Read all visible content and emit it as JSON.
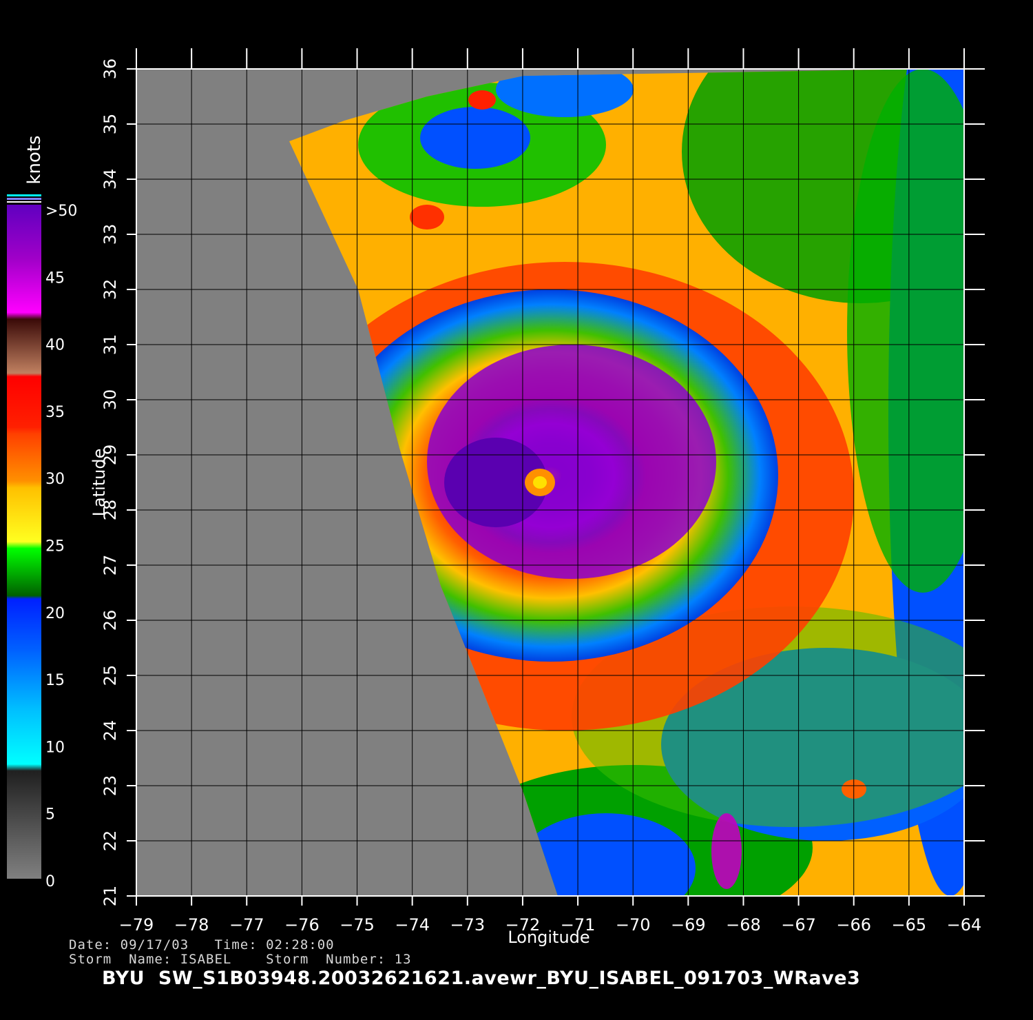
{
  "map": {
    "x_axis_label": "Longitude",
    "y_axis_label": "Latitude",
    "lon_ticks": [
      "−79",
      "−78",
      "−77",
      "−76",
      "−75",
      "−74",
      "−73",
      "−72",
      "−71",
      "−70",
      "−69",
      "−68",
      "−67",
      "−66",
      "−65",
      "−64"
    ],
    "lat_ticks": [
      "21",
      "22",
      "23",
      "24",
      "25",
      "26",
      "27",
      "28",
      "29",
      "30",
      "31",
      "32",
      "33",
      "34",
      "35",
      "36"
    ],
    "lon_range": [
      -79,
      -64
    ],
    "lat_range": [
      21,
      36
    ],
    "land_color": "#808080",
    "storm_center": {
      "lon": -71.6,
      "lat": 28.5
    }
  },
  "colorbar": {
    "unit": "knots",
    "labels": [
      ">50",
      "45",
      "40",
      "35",
      "30",
      "25",
      "20",
      "15",
      "10",
      "5",
      "0"
    ],
    "colors": [
      "#6a00c8",
      "#a800d0",
      "#e800f0",
      "#5a1a10",
      "#c07050",
      "#ff1010",
      "#ff8000",
      "#ffd000",
      "#00e000",
      "#008000",
      "#0000ff",
      "#00a0ff",
      "#00ffff",
      "#303030",
      "#707070"
    ]
  },
  "footer": {
    "date_line": "Date: 09/17/03   Time: 02:28:00",
    "storm_line": "Storm  Name: ISABEL    Storm  Number: 13",
    "product_id": "BYU  SW_S1B03948.20032621621.avewr_BYU_ISABEL_091703_WRave3"
  }
}
